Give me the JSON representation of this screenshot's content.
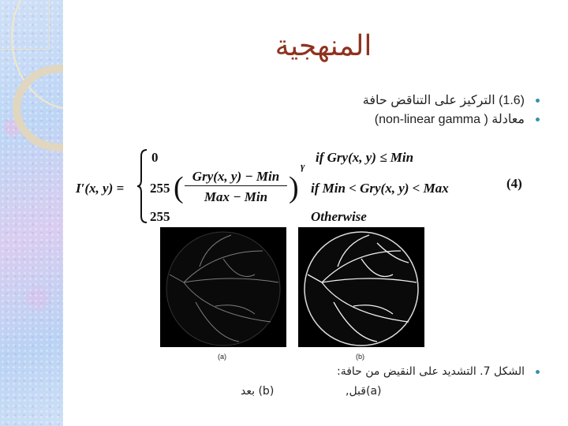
{
  "title": "المنهجية",
  "bullets": [
    "(1.6) التركيز على التناقض حافة",
    "معادلة ( non-linear gamma)",
    "الشكل 7. التشديد على النقيض من حافة:"
  ],
  "equation": {
    "lhs": "I′(x, y) =",
    "case1_value": "0",
    "case2_prefix": "255",
    "numerator": "Gry(x, y) − Min",
    "denominator": "Max − Min",
    "exponent": "γ",
    "case3_value": "255",
    "cond1": "if Gry(x, y) ≤ Min",
    "cond2": "if Min < Gry(x, y) < Max",
    "cond3": "Otherwise",
    "number": "(4)"
  },
  "figures": [
    {
      "label": "(a)"
    },
    {
      "label": "(b)"
    }
  ],
  "caption_line2": {
    "a": "(a)قبل,",
    "b": "(b) بعد"
  },
  "colors": {
    "title": "#8e3320",
    "bullet": "#3a8fb0"
  }
}
